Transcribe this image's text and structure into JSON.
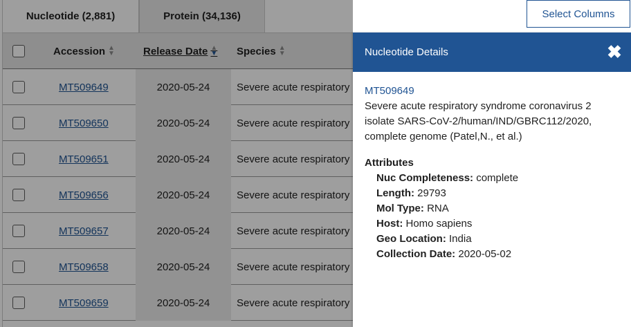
{
  "tabs": [
    {
      "label": "Nucleotide (2,881)",
      "active": true
    },
    {
      "label": "Protein (34,136)",
      "active": false
    }
  ],
  "toolbar": {
    "select_columns_label": "Select Columns"
  },
  "table": {
    "columns": {
      "accession": "Accession",
      "release_date": "Release Date",
      "species": "Species"
    },
    "rows": [
      {
        "accession": "MT509649",
        "release_date": "2020-05-24",
        "species": "Severe acute respiratory"
      },
      {
        "accession": "MT509650",
        "release_date": "2020-05-24",
        "species": "Severe acute respiratory"
      },
      {
        "accession": "MT509651",
        "release_date": "2020-05-24",
        "species": "Severe acute respiratory"
      },
      {
        "accession": "MT509656",
        "release_date": "2020-05-24",
        "species": "Severe acute respiratory"
      },
      {
        "accession": "MT509657",
        "release_date": "2020-05-24",
        "species": "Severe acute respiratory"
      },
      {
        "accession": "MT509658",
        "release_date": "2020-05-24",
        "species": "Severe acute respiratory"
      },
      {
        "accession": "MT509659",
        "release_date": "2020-05-24",
        "species": "Severe acute respiratory"
      }
    ]
  },
  "details": {
    "title": "Nucleotide Details",
    "close_icon": "close-icon",
    "accession": "MT509649",
    "description": "Severe acute respiratory syndrome coronavirus 2 isolate SARS-CoV-2/human/IND/GBRC112/2020, complete genome (Patel,N., et al.)",
    "attributes_heading": "Attributes",
    "attributes": [
      {
        "label": "Nuc Completeness:",
        "value": "complete"
      },
      {
        "label": "Length:",
        "value": "29793"
      },
      {
        "label": "Mol Type:",
        "value": "RNA"
      },
      {
        "label": "Host:",
        "value": "Homo sapiens"
      },
      {
        "label": "Geo Location:",
        "value": "India"
      },
      {
        "label": "Collection Date:",
        "value": "2020-05-02"
      }
    ]
  },
  "colors": {
    "accent": "#205493",
    "overlay": "rgba(0,0,0,0.38)"
  }
}
